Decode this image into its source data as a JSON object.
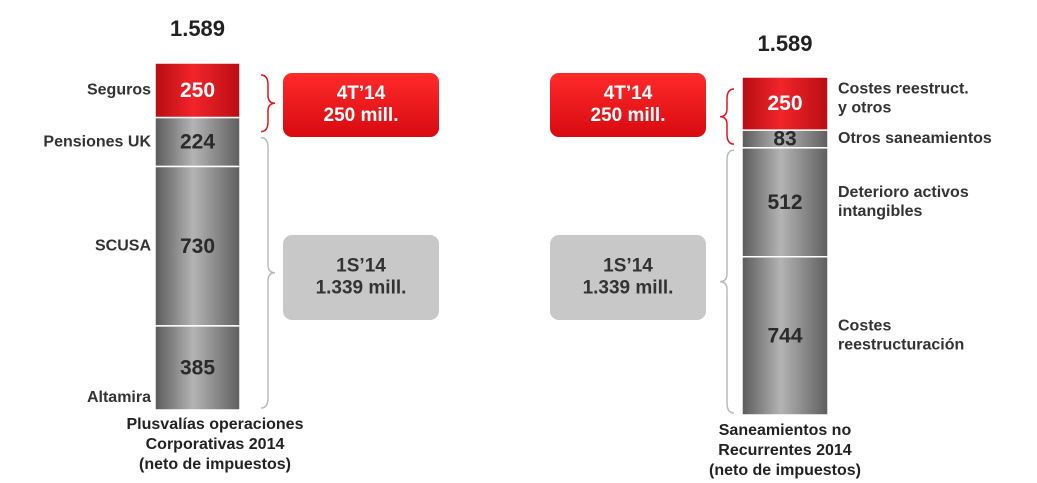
{
  "chart_data": [
    {
      "type": "stacked_bar",
      "total": "1.589",
      "categories": [
        [
          "Seguros"
        ],
        [
          "Pensiones UK"
        ],
        [
          "SCUSA"
        ],
        [
          "Altamira"
        ]
      ],
      "values": [
        250,
        224,
        730,
        385
      ],
      "colors": [
        "#e8141a",
        "#8c8c8c",
        "#8c8c8c",
        "#8c8c8c"
      ],
      "label_side": "left",
      "xlabel": [
        "Plusvalías operaciones",
        "Corporativas 2014",
        "(neto de impuestos)"
      ],
      "annotations": [
        {
          "text": [
            "4T’14",
            "250 mill."
          ],
          "color": "#e8141a"
        },
        {
          "text": [
            "1S’14",
            "1.339 mill."
          ],
          "color": "#c8c8c8"
        }
      ]
    },
    {
      "type": "stacked_bar",
      "total": "1.589",
      "categories": [
        [
          "Costes reestruct.",
          "y otros"
        ],
        [
          "Otros saneamientos"
        ],
        [
          "Deterioro activos",
          "intangibles"
        ],
        [
          "Costes",
          "reestructuración"
        ]
      ],
      "values": [
        250,
        83,
        512,
        744
      ],
      "colors": [
        "#e8141a",
        "#8c8c8c",
        "#8c8c8c",
        "#8c8c8c"
      ],
      "label_side": "right",
      "xlabel": [
        "Saneamientos no",
        "Recurrentes 2014",
        "(neto de impuestos)"
      ],
      "annotations": [
        {
          "text": [
            "4T’14",
            "250 mill."
          ],
          "color": "#e8141a"
        },
        {
          "text": [
            "1S’14",
            "1.339 mill."
          ],
          "color": "#c8c8c8"
        }
      ]
    }
  ]
}
